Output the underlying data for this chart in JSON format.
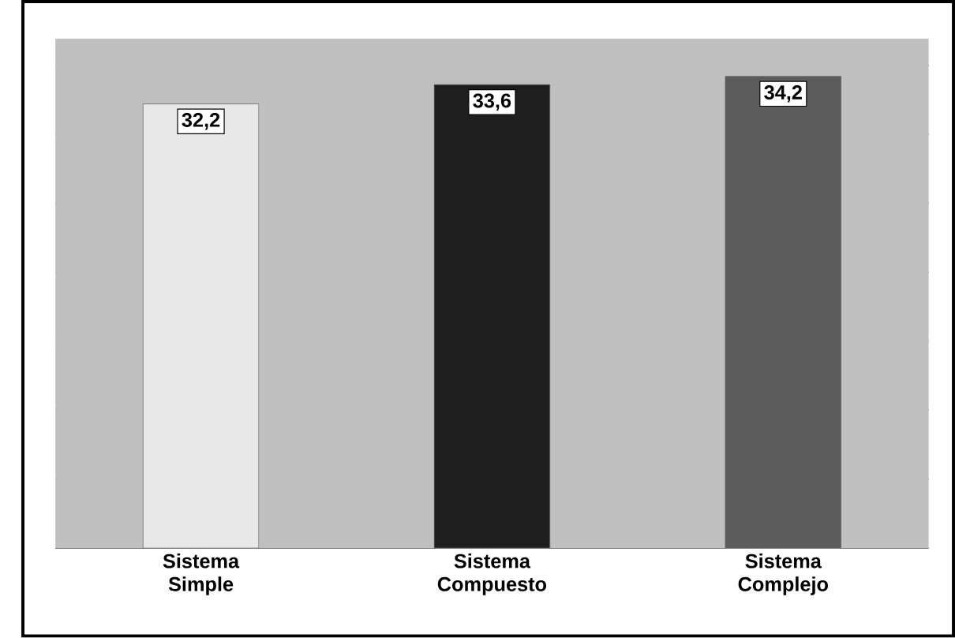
{
  "chart_data": {
    "type": "bar",
    "categories": [
      "Sistema Simple",
      "Sistema Compuesto",
      "Sistema Complejo"
    ],
    "values": [
      32.2,
      33.6,
      34.2
    ],
    "value_labels": [
      "32,2",
      "33,6",
      "34,2"
    ],
    "colors": [
      "#e8e8e8",
      "#1e1e1e",
      "#5c5c5c"
    ],
    "grid": "y",
    "tick_labels": "x"
  }
}
